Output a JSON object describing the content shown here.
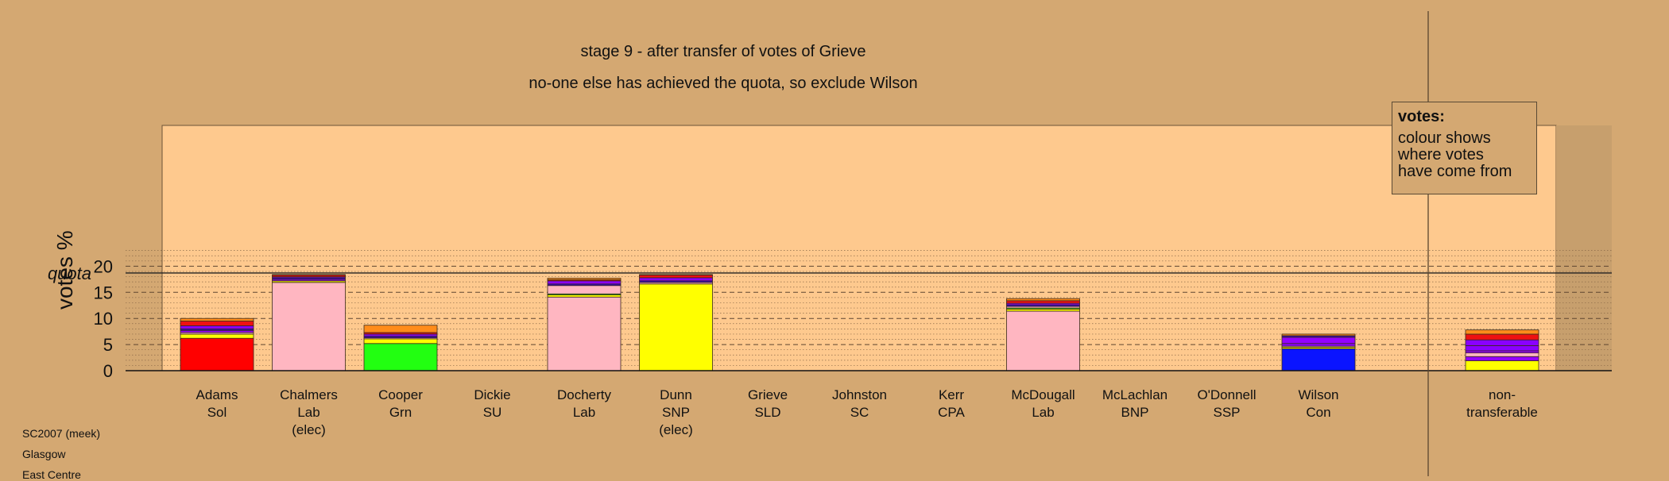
{
  "title": "stage 9 - after transfer of votes of Grieve",
  "subtitle": "no-one else has achieved the quota, so exclude Wilson",
  "legend": {
    "title": "votes:",
    "lines": [
      "colour shows",
      "where votes",
      "have come from"
    ]
  },
  "info": [
    "SC2007 (meek)",
    "Glasgow",
    "East Centre"
  ],
  "chart_data": {
    "type": "bar",
    "stacked": true,
    "ylabel": "votes %",
    "ylim": [
      0,
      23.5
    ],
    "yticks": [
      0,
      5,
      10,
      15,
      20
    ],
    "quota": {
      "label": "quota",
      "value": 18.7
    },
    "grid": true,
    "categories": [
      {
        "name": "Adams",
        "party": "Sol",
        "status": ""
      },
      {
        "name": "Chalmers",
        "party": "Lab",
        "status": "(elec)"
      },
      {
        "name": "Cooper",
        "party": "Grn",
        "status": ""
      },
      {
        "name": "Dickie",
        "party": "SU",
        "status": ""
      },
      {
        "name": "Docherty",
        "party": "Lab",
        "status": ""
      },
      {
        "name": "Dunn",
        "party": "SNP",
        "status": "(elec)"
      },
      {
        "name": "Grieve",
        "party": "SLD",
        "status": ""
      },
      {
        "name": "Johnston",
        "party": "SC",
        "status": ""
      },
      {
        "name": "Kerr",
        "party": "CPA",
        "status": ""
      },
      {
        "name": "McDougall",
        "party": "Lab",
        "status": ""
      },
      {
        "name": "McLachlan",
        "party": "BNP",
        "status": ""
      },
      {
        "name": "O'Donnell",
        "party": "SSP",
        "status": ""
      },
      {
        "name": "Wilson",
        "party": "Con",
        "status": ""
      },
      {
        "name": "non-",
        "party": "transferable",
        "status": ""
      }
    ],
    "slots": [
      0,
      1,
      2,
      3,
      4,
      5,
      6,
      7,
      8,
      9,
      10,
      11,
      12,
      14
    ],
    "stacks": [
      [
        {
          "v": 6.2,
          "c": "#ff0000"
        },
        {
          "v": 0.8,
          "c": "#ffff00"
        },
        {
          "v": 0.3,
          "c": "#ffb6c1"
        },
        {
          "v": 0.4,
          "c": "#9400ff"
        },
        {
          "v": 0.3,
          "c": "#3300cc"
        },
        {
          "v": 0.6,
          "c": "#8a00ff"
        },
        {
          "v": 0.9,
          "c": "#ee1111"
        },
        {
          "v": 0.5,
          "c": "#ff8c1a"
        }
      ],
      [
        {
          "v": 16.9,
          "c": "#ffb6c1"
        },
        {
          "v": 0.3,
          "c": "#ffff00"
        },
        {
          "v": 0.3,
          "c": "#9400ff"
        },
        {
          "v": 0.3,
          "c": "#3300cc"
        },
        {
          "v": 0.2,
          "c": "#8a00ff"
        },
        {
          "v": 0.3,
          "c": "#ee1111"
        },
        {
          "v": 0.1,
          "c": "#ff8c1a"
        }
      ],
      [
        {
          "v": 5.2,
          "c": "#22ff11"
        },
        {
          "v": 0.9,
          "c": "#ffff00"
        },
        {
          "v": 0.2,
          "c": "#ffb6c1"
        },
        {
          "v": 0.3,
          "c": "#3300cc"
        },
        {
          "v": 0.4,
          "c": "#8a00ff"
        },
        {
          "v": 0.3,
          "c": "#ee1111"
        },
        {
          "v": 1.4,
          "c": "#ff8c1a"
        }
      ],
      [],
      [
        {
          "v": 14.1,
          "c": "#ffb6c1"
        },
        {
          "v": 0.4,
          "c": "#ffff00"
        },
        {
          "v": 0.2,
          "c": "#22ff11"
        },
        {
          "v": 1.6,
          "c": "#ffb6c1"
        },
        {
          "v": 0.3,
          "c": "#3300cc"
        },
        {
          "v": 0.6,
          "c": "#8a00ff"
        },
        {
          "v": 0.2,
          "c": "#ee1111"
        },
        {
          "v": 0.3,
          "c": "#ff8c1a"
        }
      ],
      [
        {
          "v": 16.6,
          "c": "#ffff00"
        },
        {
          "v": 0.3,
          "c": "#ffb6c1"
        },
        {
          "v": 0.3,
          "c": "#3300cc"
        },
        {
          "v": 0.6,
          "c": "#8a00ff"
        },
        {
          "v": 0.5,
          "c": "#ee1111"
        },
        {
          "v": 0.1,
          "c": "#ff8c1a"
        }
      ],
      [],
      [],
      [],
      [
        {
          "v": 11.4,
          "c": "#ffb6c1"
        },
        {
          "v": 0.4,
          "c": "#ffff00"
        },
        {
          "v": 0.2,
          "c": "#22ff11"
        },
        {
          "v": 0.3,
          "c": "#ffb6c1"
        },
        {
          "v": 0.3,
          "c": "#3300cc"
        },
        {
          "v": 0.3,
          "c": "#8a00ff"
        },
        {
          "v": 0.5,
          "c": "#ee1111"
        },
        {
          "v": 0.4,
          "c": "#ff8c1a"
        }
      ],
      [],
      [],
      [
        {
          "v": 4.2,
          "c": "#0a14ff"
        },
        {
          "v": 0.3,
          "c": "#ffff00"
        },
        {
          "v": 0.2,
          "c": "#ffb6c1"
        },
        {
          "v": 0.5,
          "c": "#8a00ff"
        },
        {
          "v": 1.2,
          "c": "#9400ff"
        },
        {
          "v": 0.3,
          "c": "#3300cc"
        },
        {
          "v": 0.3,
          "c": "#ff8c1a"
        }
      ],
      [
        {
          "v": 1.9,
          "c": "#ffff00"
        },
        {
          "v": 0.8,
          "c": "#9400ff"
        },
        {
          "v": 0.7,
          "c": "#ffb6c1"
        },
        {
          "v": 0.4,
          "c": "#9400ff"
        },
        {
          "v": 1.0,
          "c": "#8a00ff"
        },
        {
          "v": 1.1,
          "c": "#8a00ff"
        },
        {
          "v": 1.1,
          "c": "#ee1111"
        },
        {
          "v": 0.8,
          "c": "#ff8c1a"
        }
      ]
    ]
  }
}
